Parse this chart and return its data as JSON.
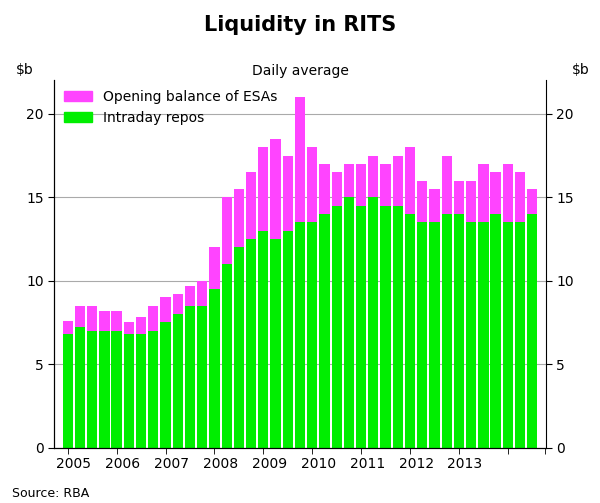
{
  "title": "Liquidity in RITS",
  "subtitle": "Daily average",
  "source": "Source: RBA",
  "legend": [
    {
      "label": "Opening balance of ESAs",
      "color": "#FF44FF"
    },
    {
      "label": "Intraday repos",
      "color": "#00EE00"
    }
  ],
  "x_positions": [
    2004.0,
    2004.25,
    2004.5,
    2004.75,
    2005.0,
    2005.25,
    2005.5,
    2005.75,
    2006.0,
    2006.25,
    2006.5,
    2006.75,
    2007.0,
    2007.25,
    2007.5,
    2007.75,
    2008.0,
    2008.25,
    2008.5,
    2008.75,
    2009.0,
    2009.25,
    2009.5,
    2009.75,
    2010.0,
    2010.25,
    2010.5,
    2010.75,
    2011.0,
    2011.25,
    2011.5,
    2011.75,
    2012.0,
    2012.25,
    2012.5,
    2012.75,
    2013.0,
    2013.25,
    2013.5
  ],
  "intraday_repos": [
    6.8,
    7.2,
    7.0,
    7.0,
    7.0,
    6.8,
    6.8,
    7.0,
    7.5,
    8.0,
    8.5,
    8.5,
    9.5,
    11.0,
    12.0,
    12.5,
    13.0,
    12.5,
    13.0,
    13.5,
    13.5,
    14.0,
    14.5,
    15.0,
    14.5,
    15.0,
    14.5,
    14.5,
    14.0,
    13.5,
    13.5,
    14.0,
    14.0,
    13.5,
    13.5,
    14.0,
    13.5,
    13.5,
    14.0
  ],
  "esa_balance": [
    0.8,
    1.3,
    1.5,
    1.2,
    1.2,
    0.7,
    1.0,
    1.5,
    1.5,
    1.2,
    1.2,
    1.5,
    2.5,
    4.0,
    3.5,
    4.0,
    5.0,
    6.0,
    4.5,
    7.5,
    4.5,
    3.0,
    2.0,
    2.0,
    2.5,
    2.5,
    2.5,
    3.0,
    4.0,
    2.5,
    2.0,
    3.5,
    2.0,
    2.5,
    3.5,
    2.5,
    3.5,
    3.0,
    1.5
  ],
  "bar_color_green": "#00EE00",
  "bar_color_pink": "#FF44FF",
  "bar_width": 0.21,
  "ylim": [
    0,
    22
  ],
  "yticks": [
    0,
    5,
    10,
    15,
    20
  ],
  "xlim": [
    2003.72,
    2013.78
  ],
  "xticks": [
    2004.125,
    2005.125,
    2006.125,
    2007.125,
    2008.125,
    2009.125,
    2010.125,
    2011.125,
    2012.125,
    2013.125
  ],
  "xticklabels": [
    "2005",
    "2006",
    "2007",
    "2008",
    "2009",
    "2010",
    "2011",
    "2012",
    "2013",
    ""
  ],
  "xtick_minor": [
    2004.0,
    2005.0,
    2006.0,
    2007.0,
    2008.0,
    2009.0,
    2010.0,
    2011.0,
    2012.0,
    2013.0,
    2013.75
  ],
  "background_color": "#ffffff",
  "grid_color": "#aaaaaa",
  "title_fontsize": 15,
  "subtitle_fontsize": 10,
  "tick_fontsize": 10,
  "legend_fontsize": 10
}
